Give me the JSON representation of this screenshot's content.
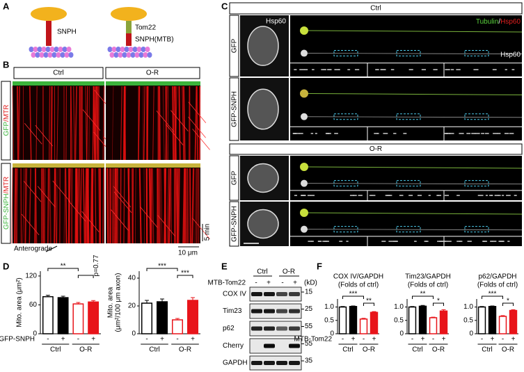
{
  "panel_labels": [
    "A",
    "B",
    "C",
    "D",
    "E",
    "F"
  ],
  "panel_a": {
    "snph": "SNPH",
    "tom22": "Tom22",
    "snph_mtb": "SNPH(MTB)"
  },
  "panel_b": {
    "columns": [
      "Ctrl",
      "O-R"
    ],
    "rows": [
      [
        "GFP",
        "/MTR"
      ],
      [
        "GFP-SNPH",
        "/MTR"
      ]
    ],
    "time_scale": "5 min",
    "space_scale": "10 μm",
    "direction": "Anterograde"
  },
  "panel_c": {
    "sections": [
      {
        "title": "Ctrl",
        "rows": [
          "GFP",
          "GFP-SNPH"
        ]
      },
      {
        "title": "O-R",
        "rows": [
          "GFP",
          "GFP-SNPH"
        ]
      }
    ],
    "cell_label": "Hsp60",
    "legend": [
      "Tubulin",
      "/",
      "Hsp60"
    ],
    "axon_label": "Hsp60"
  },
  "panel_e": {
    "groups": [
      "Ctrl",
      "O-R"
    ],
    "treatment": "MTB-Tom22",
    "signs": [
      "-",
      "+",
      "-",
      "+"
    ],
    "unit": "(kD)",
    "bands": [
      "COX IV",
      "Tim23",
      "p62",
      "Cherry",
      "GAPDH"
    ],
    "markers": [
      "15",
      "25",
      "55",
      "55",
      "35"
    ]
  },
  "chart_data": [
    {
      "type": "bar",
      "ylabel": [
        "Mito. area (μm²)"
      ],
      "ylim": [
        0,
        130
      ],
      "yticks": [
        0,
        60,
        120
      ],
      "values": [
        77,
        75,
        62,
        66
      ],
      "errors": [
        3,
        3,
        3,
        3
      ],
      "colors": [
        "#ffffff",
        "#000000",
        "#ffffff",
        "#e8141a"
      ],
      "edgecolors": [
        "#000000",
        "#000000",
        "#e8141a",
        "#e8141a"
      ],
      "x_labels": [
        "-",
        "+",
        "-",
        "+"
      ],
      "groups": [
        "Ctrl",
        "O-R"
      ],
      "row_label": "GFP-SNPH",
      "annotations": [
        "**",
        "p=0.77"
      ]
    },
    {
      "type": "bar",
      "ylabel": [
        "Mito. area",
        "(μm²/100 μm axon)"
      ],
      "ylim": [
        0,
        45
      ],
      "yticks": [
        0,
        20,
        40
      ],
      "values": [
        22,
        23,
        10,
        24
      ],
      "errors": [
        2,
        2,
        1,
        2
      ],
      "colors": [
        "#ffffff",
        "#000000",
        "#ffffff",
        "#e8141a"
      ],
      "edgecolors": [
        "#000000",
        "#000000",
        "#e8141a",
        "#e8141a"
      ],
      "x_labels": [
        "-",
        "+",
        "-",
        "+"
      ],
      "groups": [
        "Ctrl",
        "O-R"
      ],
      "annotations": [
        "***",
        "***"
      ]
    },
    {
      "type": "bar",
      "title": [
        "COX IV/GAPDH",
        "(Folds of ctrl)"
      ],
      "ylim": [
        0,
        1.3
      ],
      "yticks": [
        0,
        0.5,
        {
          "value": 1,
          "label": "1.0"
        }
      ],
      "values": [
        1.0,
        1.02,
        0.55,
        0.8
      ],
      "errors": [
        0.02,
        0.02,
        0.03,
        0.03
      ],
      "colors": [
        "#ffffff",
        "#000000",
        "#ffffff",
        "#e8141a"
      ],
      "edgecolors": [
        "#000000",
        "#000000",
        "#e8141a",
        "#e8141a"
      ],
      "x_labels": [
        "-",
        "+",
        "-",
        "+"
      ],
      "groups": [
        "Ctrl",
        "O-R"
      ],
      "row_label": "MTB-Tom22",
      "annotations": [
        "***",
        "**"
      ]
    },
    {
      "type": "bar",
      "title": [
        "Tim23/GAPDH",
        "(Folds of ctrl)"
      ],
      "ylim": [
        0,
        1.3
      ],
      "yticks": [
        0,
        0.5,
        {
          "value": 1,
          "label": "1.0"
        }
      ],
      "values": [
        1.0,
        1.03,
        0.6,
        0.85
      ],
      "errors": [
        0.02,
        0.03,
        0.02,
        0.05
      ],
      "colors": [
        "#ffffff",
        "#000000",
        "#ffffff",
        "#e8141a"
      ],
      "edgecolors": [
        "#000000",
        "#000000",
        "#e8141a",
        "#e8141a"
      ],
      "x_labels": [
        "-",
        "+",
        "-",
        "+"
      ],
      "groups": [
        "Ctrl",
        "O-R"
      ],
      "annotations": [
        "**",
        "*"
      ]
    },
    {
      "type": "bar",
      "title": [
        "p62/GAPDH",
        "(Folds of ctrl)"
      ],
      "ylim": [
        0,
        1.3
      ],
      "yticks": [
        0,
        0.5,
        {
          "value": 1,
          "label": "1.0"
        }
      ],
      "values": [
        1.0,
        1.02,
        0.65,
        0.87
      ],
      "errors": [
        0.02,
        0.02,
        0.03,
        0.03
      ],
      "colors": [
        "#ffffff",
        "#000000",
        "#ffffff",
        "#e8141a"
      ],
      "edgecolors": [
        "#000000",
        "#000000",
        "#e8141a",
        "#e8141a"
      ],
      "x_labels": [
        "-",
        "+",
        "-",
        "+"
      ],
      "groups": [
        "Ctrl",
        "O-R"
      ],
      "annotations": [
        "***",
        "*"
      ]
    }
  ]
}
